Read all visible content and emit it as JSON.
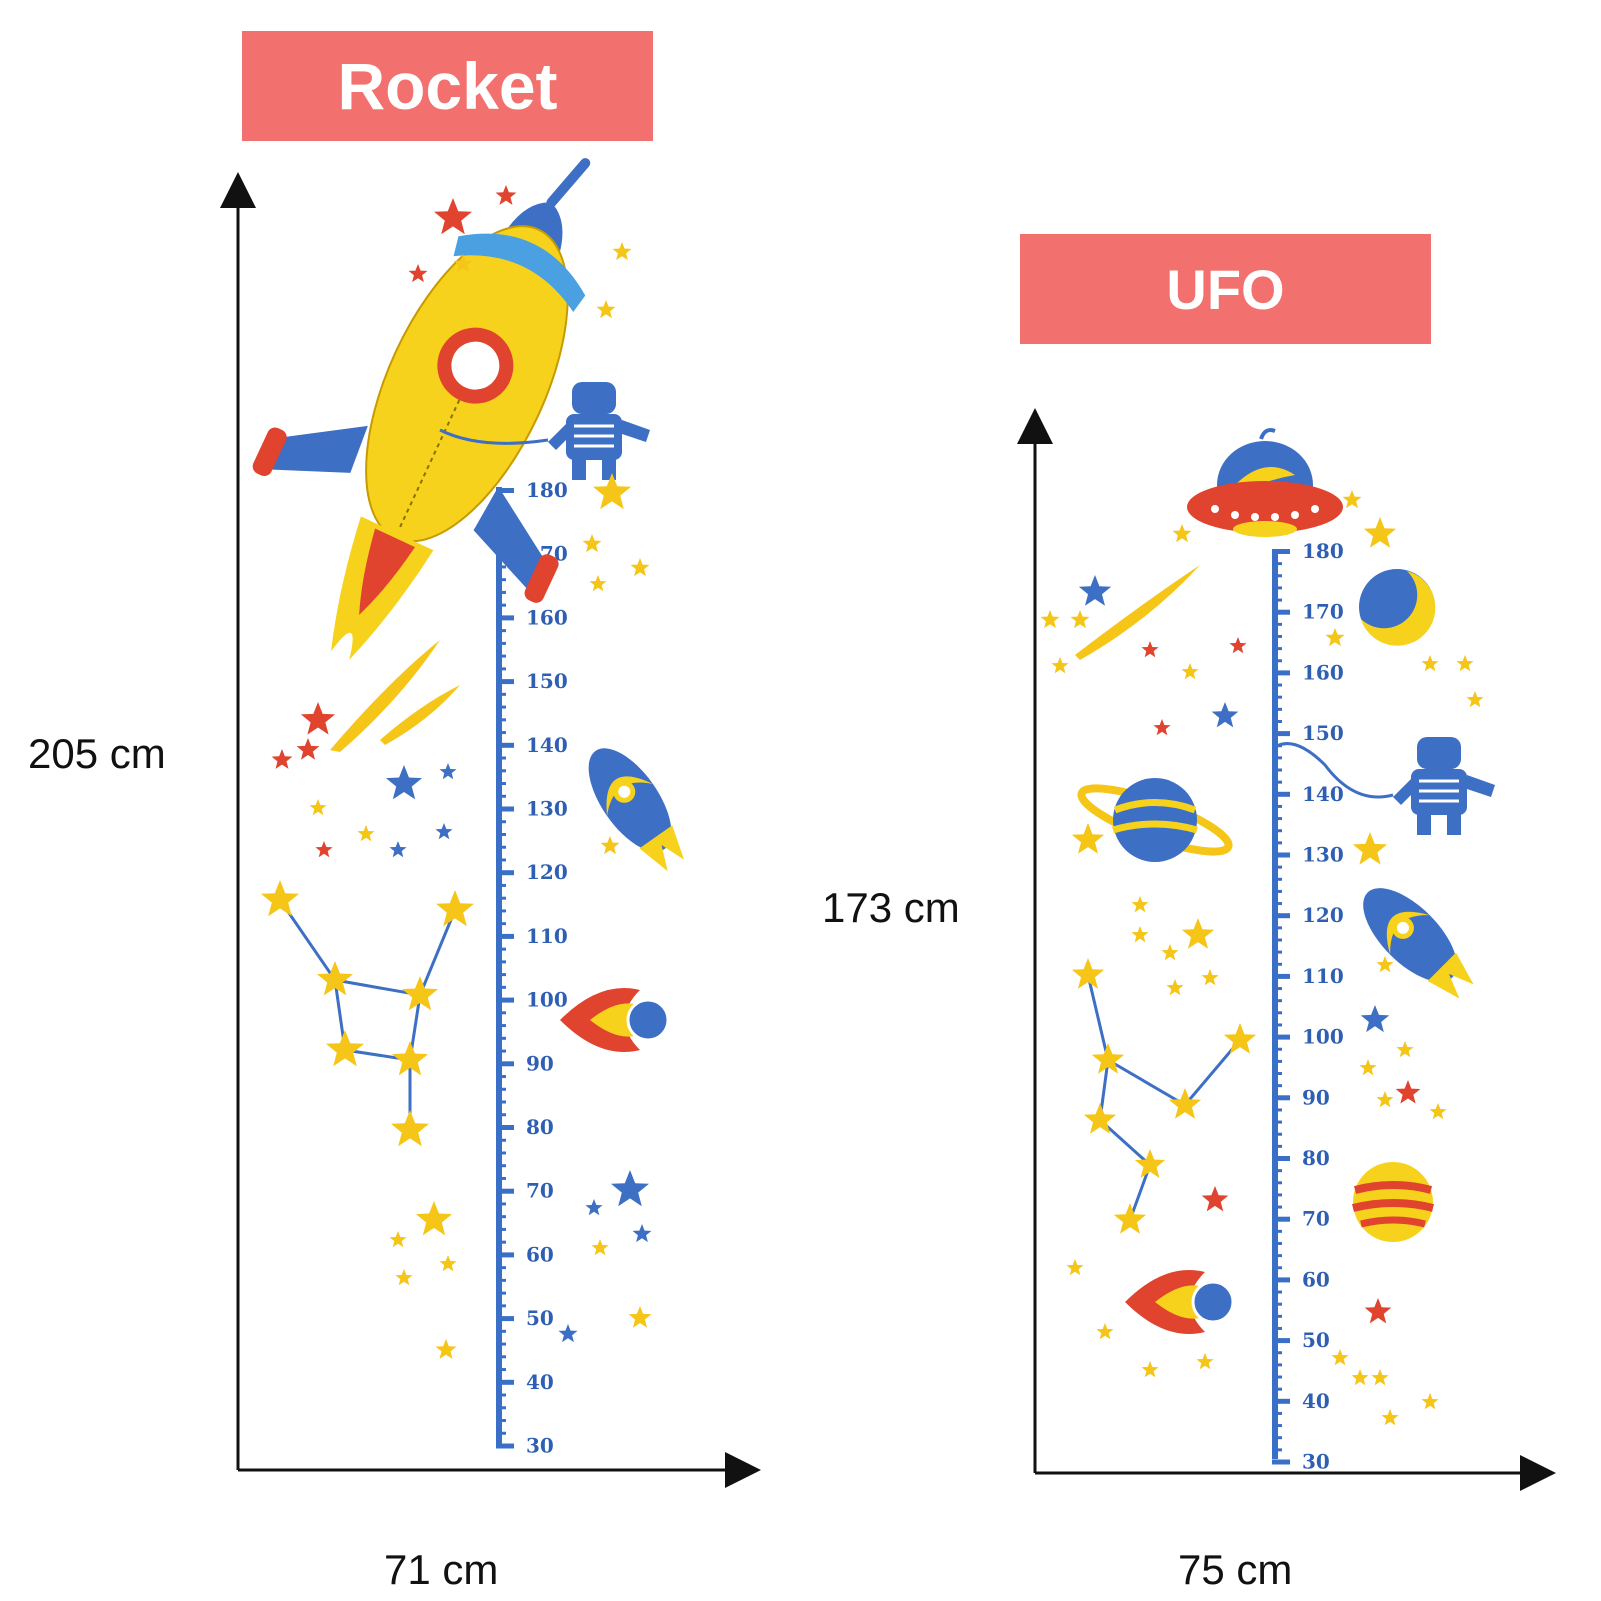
{
  "rocket_chart": {
    "title": "Rocket",
    "height_label": "205 cm",
    "width_label": "71 cm",
    "ruler_labels": [
      "180",
      "170",
      "160",
      "150",
      "140",
      "130",
      "120",
      "110",
      "100",
      "90",
      "80",
      "70",
      "60",
      "50",
      "40",
      "30"
    ]
  },
  "ufo_chart": {
    "title": "UFO",
    "height_label": "173 cm",
    "width_label": "75 cm",
    "ruler_labels": [
      "180",
      "170",
      "160",
      "150",
      "140",
      "130",
      "120",
      "110",
      "100",
      "90",
      "80",
      "70",
      "60",
      "50",
      "40",
      "30"
    ]
  },
  "colors": {
    "banner": "#f2706e",
    "ruler_blue": "#3a6fc7",
    "star_yellow": "#f5c518",
    "star_red": "#e0432e",
    "rocket_yellow": "#f7d21c",
    "blue": "#3d6fc4"
  }
}
